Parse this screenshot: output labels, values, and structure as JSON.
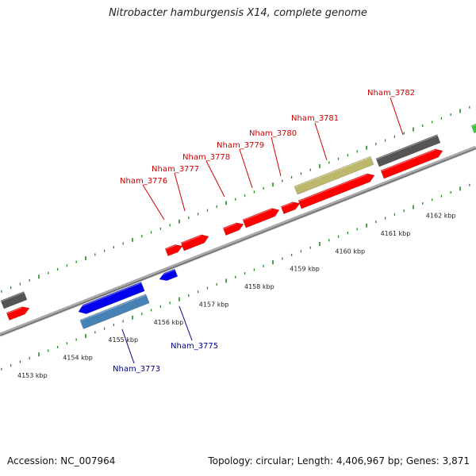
{
  "title": "Nitrobacter hamburgensis X14, complete genome",
  "footer": {
    "accession": "Accession: NC_007964",
    "summary": "Topology: circular; Length: 4,406,967 bp; Genes: 3,871"
  },
  "colors": {
    "red": "#ff0000",
    "blue": "#0000ee",
    "steel": "#4682b4",
    "gray": "#555555",
    "khaki": "#bdb76b",
    "green_tick": "#228b22",
    "backbone": "#888888",
    "top_label": "#cc0000",
    "bottom_label": "#00008b"
  },
  "kbp_ticks": [
    {
      "label": "4153 kbp",
      "u": 4153
    },
    {
      "label": "4154 kbp",
      "u": 4154
    },
    {
      "label": "4155 kbp",
      "u": 4155
    },
    {
      "label": "4156 kbp",
      "u": 4156
    },
    {
      "label": "4157 kbp",
      "u": 4157
    },
    {
      "label": "4158 kbp",
      "u": 4158
    },
    {
      "label": "4159 kbp",
      "u": 4159
    },
    {
      "label": "4160 kbp",
      "u": 4160
    },
    {
      "label": "4161 kbp",
      "u": 4161
    },
    {
      "label": "4162 kbp",
      "u": 4162
    }
  ],
  "genes_top_labels": [
    {
      "name": "Nham_3776"
    },
    {
      "name": "Nham_3777"
    },
    {
      "name": "Nham_3778"
    },
    {
      "name": "Nham_3779"
    },
    {
      "name": "Nham_3780"
    },
    {
      "name": "Nham_3781"
    },
    {
      "name": "Nham_3782"
    }
  ],
  "genes_bottom_labels": [
    {
      "name": "Nham_3773"
    },
    {
      "name": "Nham_3775"
    }
  ]
}
